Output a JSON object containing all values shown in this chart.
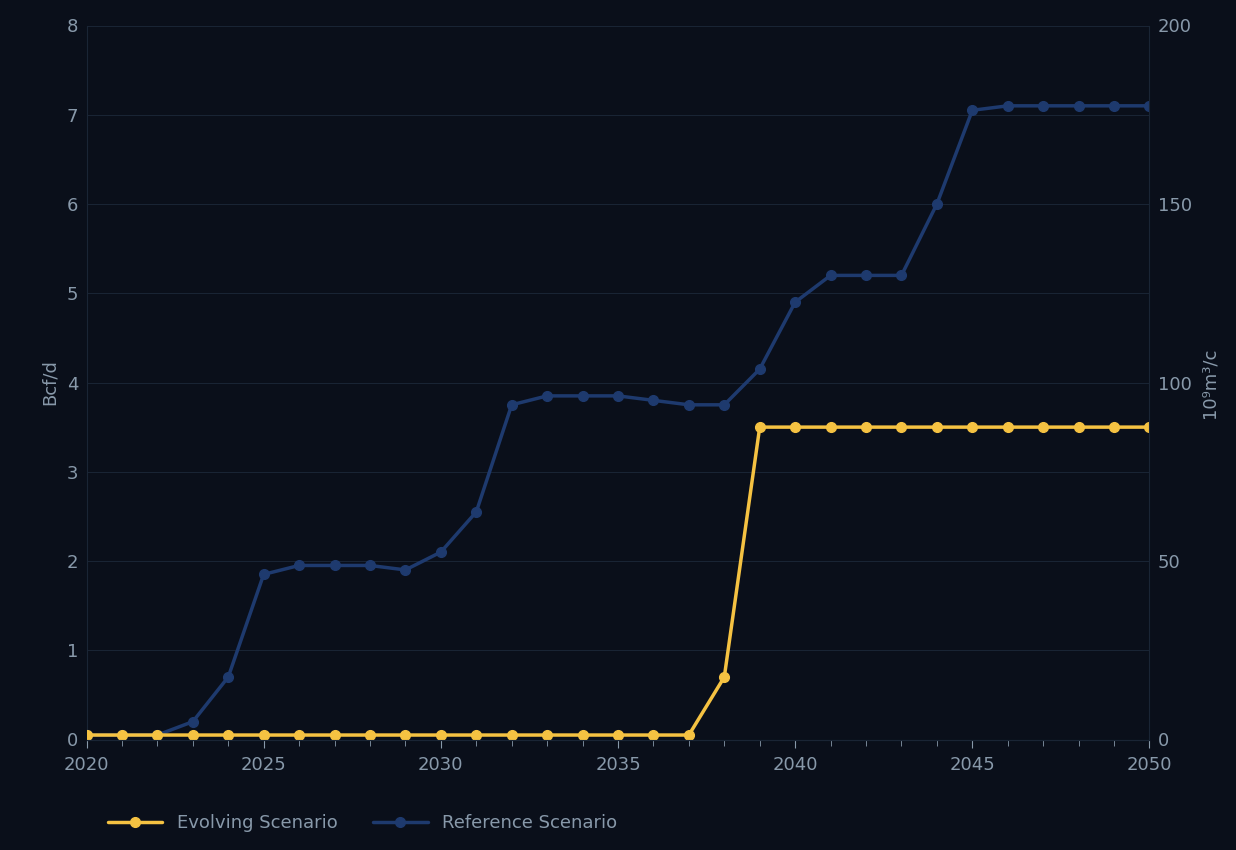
{
  "background_color": "#0a0f1a",
  "plot_bg_color": "#0a0f1a",
  "grid_color": "#1a2535",
  "ylabel_left": "Bcf/d",
  "ylabel_right": "10⁹m³/c",
  "ylim_left": [
    0,
    8
  ],
  "ylim_right": [
    0,
    200
  ],
  "xlim": [
    2020,
    2050
  ],
  "xticks": [
    2020,
    2025,
    2030,
    2035,
    2040,
    2045,
    2050
  ],
  "yticks_left": [
    0,
    1,
    2,
    3,
    4,
    5,
    6,
    7,
    8
  ],
  "yticks_right": [
    0,
    50,
    100,
    150,
    200
  ],
  "evolving_color": "#f5c242",
  "reference_color": "#1e3a6e",
  "marker_size": 7,
  "marker_size_small": 5,
  "line_width": 2.5,
  "evolving_years": [
    2020,
    2021,
    2022,
    2023,
    2024,
    2025,
    2026,
    2027,
    2028,
    2029,
    2030,
    2031,
    2032,
    2033,
    2034,
    2035,
    2036,
    2037,
    2038,
    2039,
    2040,
    2041,
    2042,
    2043,
    2044,
    2045,
    2046,
    2047,
    2048,
    2049,
    2050
  ],
  "evolving_values": [
    0.05,
    0.05,
    0.05,
    0.05,
    0.05,
    0.05,
    0.05,
    0.05,
    0.05,
    0.05,
    0.05,
    0.05,
    0.05,
    0.05,
    0.05,
    0.05,
    0.05,
    0.05,
    0.7,
    3.5,
    3.5,
    3.5,
    3.5,
    3.5,
    3.5,
    3.5,
    3.5,
    3.5,
    3.5,
    3.5,
    3.5
  ],
  "reference_years": [
    2020,
    2021,
    2022,
    2023,
    2024,
    2025,
    2026,
    2027,
    2028,
    2029,
    2030,
    2031,
    2032,
    2033,
    2034,
    2035,
    2036,
    2037,
    2038,
    2039,
    2040,
    2041,
    2042,
    2043,
    2044,
    2045,
    2046,
    2047,
    2048,
    2049,
    2050
  ],
  "reference_values": [
    0.05,
    0.05,
    0.05,
    0.2,
    0.7,
    1.85,
    1.95,
    1.95,
    1.95,
    1.9,
    2.1,
    2.55,
    3.75,
    3.85,
    3.85,
    3.85,
    3.8,
    3.75,
    3.75,
    4.15,
    4.9,
    5.2,
    5.2,
    5.2,
    6.0,
    7.05,
    7.1,
    7.1,
    7.1,
    7.1,
    7.1
  ],
  "legend_labels": [
    "Evolving Scenario",
    "Reference Scenario"
  ],
  "text_color": "#8899aa",
  "tick_color": "#8899aa",
  "spine_color": "#1a2535",
  "label_fontsize": 13,
  "tick_fontsize": 13
}
